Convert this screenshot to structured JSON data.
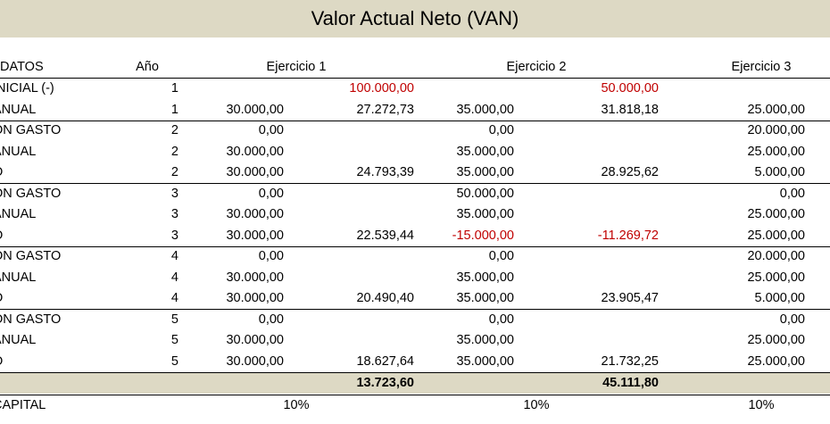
{
  "title": "Valor Actual Neto (VAN)",
  "header": {
    "label": "DATOS",
    "year": "Año",
    "e1": "Ejercicio 1",
    "e2": "Ejercicio 2",
    "e3": "Ejercicio 3"
  },
  "rows": [
    {
      "label": " INICIAL (-)",
      "year": "1",
      "e1a": "",
      "e1b": "100.000,00",
      "e2a": "",
      "e2b": "50.000,00",
      "e3a": "",
      "e3b": ""
    },
    {
      "label": "ANUAL",
      "year": "1",
      "e1a": "30.000,00",
      "e1b": "27.272,73",
      "e2a": "35.000,00",
      "e2b": "31.818,18",
      "e3a": "25.000,00",
      "e3b": ""
    },
    {
      "label": "ÓN GASTO",
      "year": "2",
      "e1a": "0,00",
      "e1b": "",
      "e2a": "0,00",
      "e2b": "",
      "e3a": "20.000,00",
      "e3b": ""
    },
    {
      "label": "ANUAL",
      "year": "2",
      "e1a": "30.000,00",
      "e1b": "",
      "e2a": "35.000,00",
      "e2b": "",
      "e3a": "25.000,00",
      "e3b": ""
    },
    {
      "label": "O",
      "year": "2",
      "e1a": "30.000,00",
      "e1b": "24.793,39",
      "e2a": "35.000,00",
      "e2b": "28.925,62",
      "e3a": "5.000,00",
      "e3b": ""
    },
    {
      "label": "ÓN GASTO",
      "year": "3",
      "e1a": "0,00",
      "e1b": "",
      "e2a": "50.000,00",
      "e2b": "",
      "e3a": "0,00",
      "e3b": ""
    },
    {
      "label": "ANUAL",
      "year": "3",
      "e1a": "30.000,00",
      "e1b": "",
      "e2a": "35.000,00",
      "e2b": "",
      "e3a": "25.000,00",
      "e3b": ""
    },
    {
      "label": "O",
      "year": "3",
      "e1a": "30.000,00",
      "e1b": "22.539,44",
      "e2a": "-15.000,00",
      "e2b": "-11.269,72",
      "e3a": "25.000,00",
      "e3b": ""
    },
    {
      "label": "ÓN GASTO",
      "year": "4",
      "e1a": "0,00",
      "e1b": "",
      "e2a": "0,00",
      "e2b": "",
      "e3a": "20.000,00",
      "e3b": ""
    },
    {
      "label": "ANUAL",
      "year": "4",
      "e1a": "30.000,00",
      "e1b": "",
      "e2a": "35.000,00",
      "e2b": "",
      "e3a": "25.000,00",
      "e3b": ""
    },
    {
      "label": "O",
      "year": "4",
      "e1a": "30.000,00",
      "e1b": "20.490,40",
      "e2a": "35.000,00",
      "e2b": "23.905,47",
      "e3a": "5.000,00",
      "e3b": ""
    },
    {
      "label": "ÓN GASTO",
      "year": "5",
      "e1a": "0,00",
      "e1b": "",
      "e2a": "0,00",
      "e2b": "",
      "e3a": "0,00",
      "e3b": ""
    },
    {
      "label": "ANUAL",
      "year": "5",
      "e1a": "30.000,00",
      "e1b": "",
      "e2a": "35.000,00",
      "e2b": "",
      "e3a": "25.000,00",
      "e3b": ""
    },
    {
      "label": "O",
      "year": "5",
      "e1a": "30.000,00",
      "e1b": "18.627,64",
      "e2a": "35.000,00",
      "e2b": "21.732,25",
      "e3a": "25.000,00",
      "e3b": ""
    }
  ],
  "total": {
    "e1b": "13.723,60",
    "e2b": "45.111,80",
    "e3b": "-"
  },
  "capital": {
    "label": "CAPITAL",
    "e1": "10%",
    "e2": "10%",
    "e3": "10%"
  },
  "colors": {
    "band": "#ddd9c4",
    "negative": "#c00000"
  }
}
